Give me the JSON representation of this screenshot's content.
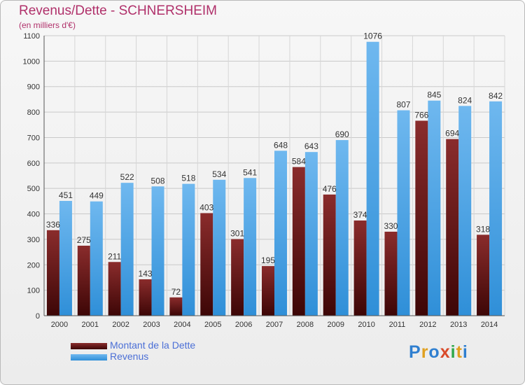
{
  "title": "Revenus/Dette - SCHNERSHEIM",
  "unit_label": "(en milliers d'€)",
  "logo_text": "Proxiti",
  "colors": {
    "dette": "#6e1a1a",
    "revenus": "#4aa3e6",
    "title": "#b0306a",
    "legend_text": "#4b6fd6"
  },
  "legend": [
    {
      "label": "Montant de la Dette",
      "series": "dette"
    },
    {
      "label": "Revenus",
      "series": "revenus"
    }
  ],
  "chart_data": {
    "type": "bar",
    "title": "Revenus/Dette - SCHNERSHEIM",
    "ylabel": "(en milliers d'€)",
    "categories": [
      "2000",
      "2001",
      "2002",
      "2003",
      "2004",
      "2005",
      "2006",
      "2007",
      "2008",
      "2009",
      "2010",
      "2011",
      "2012",
      "2013",
      "2014"
    ],
    "series": [
      {
        "name": "Montant de la Dette",
        "values": [
          336,
          275,
          211,
          143,
          72,
          403,
          301,
          195,
          584,
          476,
          374,
          330,
          766,
          694,
          318
        ]
      },
      {
        "name": "Revenus",
        "values": [
          451,
          449,
          522,
          508,
          518,
          534,
          541,
          648,
          643,
          690,
          1076,
          807,
          845,
          824,
          842
        ]
      }
    ],
    "ylim": [
      0,
      1100
    ],
    "yticks": [
      0,
      100,
      200,
      300,
      400,
      500,
      600,
      700,
      800,
      900,
      1000,
      1100
    ],
    "grid": true,
    "legend_position": "bottom-left"
  }
}
